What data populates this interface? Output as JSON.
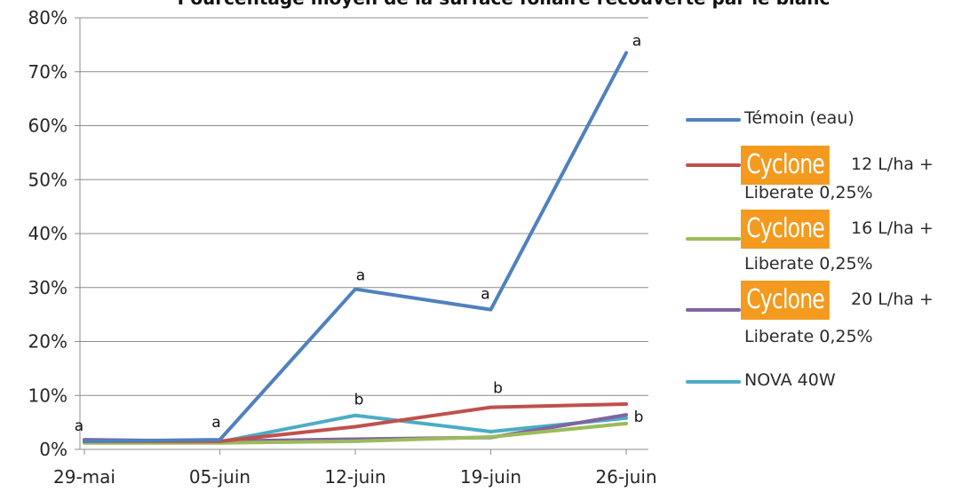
{
  "chart_data": {
    "type": "line",
    "title": "Pourcentage moyen de la surface foliaire recouverte par le blanc",
    "xlabel": "",
    "ylabel": "",
    "categories": [
      "29-mai",
      "05-juin",
      "12-juin",
      "19-juin",
      "26-juin"
    ],
    "y_ticks": [
      "0%",
      "10%",
      "20%",
      "30%",
      "40%",
      "50%",
      "60%",
      "70%",
      "80%"
    ],
    "ylim": [
      0,
      80
    ],
    "grid": true,
    "legend_position": "right",
    "series": [
      {
        "name": "Témoin (eau)",
        "color": "#4f81bd",
        "values": [
          1.5,
          1.8,
          29.7,
          25.9,
          73.5
        ]
      },
      {
        "name": "12 L/ha + Liberate 0,25%",
        "brand": "Cyclone",
        "color": "#c0504d",
        "values": [
          1.5,
          1.5,
          4.2,
          7.8,
          8.4
        ]
      },
      {
        "name": "16 L/ha + Liberate 0,25%",
        "brand": "Cyclone",
        "color": "#9bbb59",
        "values": [
          1.2,
          1.2,
          1.5,
          2.3,
          4.8
        ]
      },
      {
        "name": "20 L/ha + Liberate 0,25%",
        "brand": "Cyclone",
        "color": "#8064a2",
        "values": [
          1.8,
          1.5,
          1.9,
          2.2,
          6.4
        ]
      },
      {
        "name": "NOVA 40W",
        "color": "#4bacc6",
        "values": [
          1.3,
          1.4,
          6.3,
          3.3,
          5.8
        ]
      }
    ],
    "annotations": [
      {
        "text": "a",
        "x": "29-mai",
        "y": 1.5
      },
      {
        "text": "a",
        "x": "05-juin",
        "y": 1.8
      },
      {
        "text": "a",
        "x": "12-juin",
        "y": 29.7
      },
      {
        "text": "a",
        "x": "19-juin",
        "y": 25.9
      },
      {
        "text": "a",
        "x": "26-juin",
        "y": 73.5
      },
      {
        "text": "b",
        "x": "12-juin",
        "y": 6.3
      },
      {
        "text": "b",
        "x": "19-juin",
        "y": 7.8
      },
      {
        "text": "b",
        "x": "26-juin",
        "y": 6.4
      }
    ]
  },
  "legend": {
    "items": [
      {
        "label": "Témoin (eau)"
      },
      {
        "brand": "Cyclone",
        "label": "12 L/ha +",
        "sub": "Liberate 0,25%"
      },
      {
        "brand": "Cyclone",
        "label": "16 L/ha +",
        "sub": "Liberate 0,25%"
      },
      {
        "brand": "Cyclone",
        "label": "20 L/ha +",
        "sub": "Liberate 0,25%"
      },
      {
        "label": "NOVA 40W"
      }
    ]
  }
}
